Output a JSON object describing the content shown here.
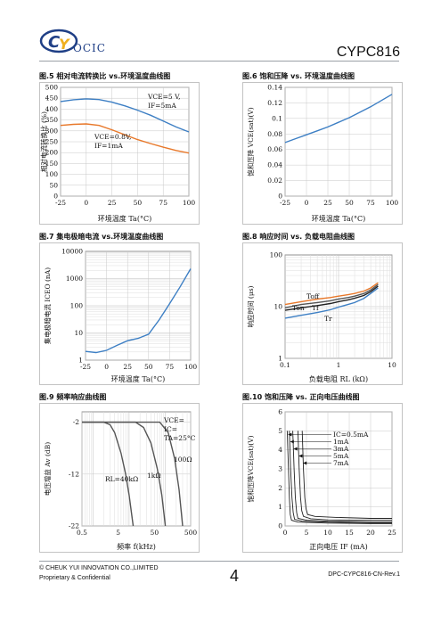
{
  "header": {
    "brand": "OCIC",
    "model": "CYPC816"
  },
  "footer": {
    "copyright": "© CHEUK YUI INNOVATION CO.,LIMITED",
    "confidential": "Proprietary & Confidential",
    "page": "4",
    "doc_id": "DPC-CYPC816-CN-Rev.1"
  },
  "colors": {
    "blue": "#3d7fc4",
    "orange": "#e8782a",
    "gray": "#555555",
    "dark": "#222222"
  },
  "chart_data": [
    {
      "id": "fig5",
      "type": "line",
      "title": "图.5 相对电流转换比 vs.环境温度曲线图",
      "xlabel": "环境温度 Ta(°C)",
      "ylabel": "相对电流转换比 (%)",
      "x_ticks": [
        "-25",
        "0",
        "25",
        "50",
        "75",
        "100"
      ],
      "y_ticks": [
        "0",
        "50",
        "100",
        "150",
        "200",
        "250",
        "300",
        "350",
        "400",
        "450",
        "500"
      ],
      "xlim": [
        -25,
        100
      ],
      "ylim": [
        0,
        500
      ],
      "grid": true,
      "series": [
        {
          "name": "VCE=5V, IF=5mA",
          "color": "blue",
          "x": [
            -25,
            -12.5,
            0,
            12.5,
            25,
            37.5,
            50,
            62.5,
            75,
            87.5,
            100
          ],
          "y": [
            435,
            443,
            447,
            444,
            432,
            415,
            395,
            372,
            345,
            318,
            295
          ]
        },
        {
          "name": "VCE=0.8V, IF=1mA",
          "color": "orange",
          "x": [
            -25,
            -12.5,
            0,
            12.5,
            25,
            37.5,
            50,
            62.5,
            75,
            87.5,
            100
          ],
          "y": [
            325,
            330,
            332,
            325,
            305,
            282,
            260,
            242,
            225,
            210,
            198
          ]
        }
      ],
      "annotations": [
        {
          "lines": [
            "VCE=5 V,",
            "IF=5mA"
          ]
        },
        {
          "lines": [
            "VCE=0.8V,",
            "IF=1mA"
          ]
        }
      ]
    },
    {
      "id": "fig6",
      "type": "line",
      "title": "图.6 饱和压降 vs. 环境温度曲线图",
      "xlabel": "环境温度 Ta(°C)",
      "ylabel": "饱和压降 VCE(sat)(V)",
      "x_ticks": [
        "-25",
        "0",
        "25",
        "50",
        "75",
        "100"
      ],
      "y_ticks": [
        "0",
        "0.02",
        "0.04",
        "0.06",
        "0.08",
        "0.1",
        "0.12",
        "0.14"
      ],
      "xlim": [
        -25,
        100
      ],
      "ylim": [
        0,
        0.14
      ],
      "grid": true,
      "series": [
        {
          "name": "VCE(sat)",
          "color": "blue",
          "x": [
            -25,
            -12.5,
            0,
            12.5,
            25,
            37.5,
            50,
            62.5,
            75,
            87.5,
            100
          ],
          "y": [
            0.069,
            0.074,
            0.079,
            0.084,
            0.089,
            0.095,
            0.101,
            0.108,
            0.115,
            0.123,
            0.131
          ]
        }
      ]
    },
    {
      "id": "fig7",
      "type": "line",
      "title": "图.7 集电极暗电流 vs.环境温度曲线图",
      "xlabel": "环境温度 Ta(°C)",
      "ylabel": "集电极暗电流 ICEO (nA)",
      "x_ticks": [
        "-25",
        "0",
        "25",
        "50",
        "75",
        "100"
      ],
      "y_ticks": [
        "1",
        "10",
        "100",
        "1000",
        "10000"
      ],
      "xlim": [
        -25,
        100
      ],
      "ylim": [
        1,
        10000
      ],
      "log_y": true,
      "grid": true,
      "series": [
        {
          "name": "ICEO",
          "color": "blue",
          "x": [
            -25,
            -12.5,
            0,
            12.5,
            25,
            37.5,
            50,
            62.5,
            75,
            87.5,
            100
          ],
          "y": [
            2.1,
            1.9,
            2.3,
            3.5,
            5.2,
            6.3,
            9.0,
            30,
            120,
            500,
            2300
          ]
        }
      ]
    },
    {
      "id": "fig8",
      "type": "line",
      "title": "图.8 响应时间 vs. 负载电阻曲线图",
      "xlabel": "负载电阻 RL (kΩ)",
      "ylabel": "响应时间 (μs)",
      "x_ticks": [
        "0.1",
        "1",
        "10"
      ],
      "y_ticks": [
        "1",
        "10",
        "100"
      ],
      "xlim": [
        0.1,
        10
      ],
      "ylim": [
        1,
        100
      ],
      "log_x": true,
      "log_y": true,
      "grid": true,
      "series": [
        {
          "name": "Toff",
          "color": "orange",
          "x": [
            0.1,
            0.2,
            0.4,
            0.7,
            1,
            1.5,
            2,
            3,
            4,
            5.5
          ],
          "y": [
            11,
            12.5,
            14,
            15,
            16,
            17,
            18,
            20,
            23,
            29
          ]
        },
        {
          "name": "Ton",
          "color": "gray",
          "x": [
            0.1,
            0.2,
            0.4,
            0.7,
            1,
            1.5,
            2,
            3,
            4,
            5.5
          ],
          "y": [
            9.5,
            11,
            12,
            13,
            14,
            15,
            16,
            18,
            21,
            27
          ]
        },
        {
          "name": "Tf",
          "color": "dark",
          "x": [
            0.1,
            0.2,
            0.4,
            0.7,
            1,
            1.5,
            2,
            3,
            4,
            5.5
          ],
          "y": [
            8.5,
            9.5,
            10.5,
            11.5,
            12.5,
            13.5,
            14.5,
            16.5,
            19.5,
            25
          ]
        },
        {
          "name": "Tr",
          "color": "blue",
          "x": [
            0.1,
            0.2,
            0.4,
            0.7,
            1,
            1.5,
            2,
            3,
            4,
            5.5
          ],
          "y": [
            6.0,
            6.8,
            7.7,
            8.7,
            9.8,
            11,
            12,
            14.5,
            18,
            23
          ]
        }
      ]
    },
    {
      "id": "fig9",
      "type": "line",
      "title": "图.9 频率响应曲线图",
      "xlabel": "频率 f(kHz)",
      "ylabel": "电压增益 Av (dB)",
      "x_ticks": [
        "0.5",
        "5",
        "50",
        "500"
      ],
      "y_ticks": [
        "-2",
        "-12",
        "-22"
      ],
      "xlim": [
        0.5,
        500
      ],
      "ylim": [
        -22,
        0
      ],
      "log_x": true,
      "grid": true,
      "series": [
        {
          "name": "RL=40kΩ",
          "color": "gray",
          "x": [
            0.5,
            2,
            3,
            4,
            6,
            8,
            10,
            13
          ],
          "y": [
            -2,
            -2,
            -2.5,
            -4,
            -8,
            -12,
            -16,
            -22
          ]
        },
        {
          "name": "RL=1kΩ",
          "color": "gray",
          "x": [
            0.5,
            15,
            25,
            40,
            60,
            80,
            100
          ],
          "y": [
            -2,
            -2,
            -3,
            -6,
            -11,
            -16,
            -22
          ]
        },
        {
          "name": "RL=100Ω",
          "color": "gray",
          "x": [
            0.5,
            70,
            120,
            180,
            240,
            300
          ],
          "y": [
            -2,
            -2,
            -4,
            -9,
            -15,
            -22
          ]
        }
      ],
      "annotations": [
        {
          "lines": [
            "VCE=",
            "IC=",
            "TA=25°C"
          ]
        },
        {
          "lines": [
            "RL=40kΩ"
          ]
        },
        {
          "lines": [
            "1kΩ"
          ]
        },
        {
          "lines": [
            "100Ω"
          ]
        }
      ]
    },
    {
      "id": "fig10",
      "type": "line",
      "title": "图.10 饱和压降 vs. 正向电压曲线图",
      "xlabel": "正向电压 IF (mA)",
      "ylabel": "饱和压降VCE(sat)(V)",
      "x_ticks": [
        "0",
        "5",
        "10",
        "15",
        "20",
        "25"
      ],
      "y_ticks": [
        "0",
        "1",
        "2",
        "3",
        "4",
        "5",
        "6"
      ],
      "xlim": [
        0,
        25
      ],
      "ylim": [
        0,
        6
      ],
      "grid": true,
      "series": [
        {
          "name": "IC=0.5mA",
          "color": "dark",
          "x": [
            0.5,
            0.8,
            1.0,
            1.2,
            1.5,
            3,
            10,
            20,
            25
          ],
          "y": [
            5.0,
            3.0,
            1.5,
            0.6,
            0.3,
            0.2,
            0.15,
            0.12,
            0.12
          ]
        },
        {
          "name": "1mA",
          "color": "dark",
          "x": [
            1.0,
            1.3,
            1.6,
            1.9,
            2.2,
            4,
            10,
            20,
            25
          ],
          "y": [
            5.0,
            3.0,
            1.5,
            0.7,
            0.35,
            0.25,
            0.2,
            0.17,
            0.17
          ]
        },
        {
          "name": "3mA",
          "color": "dark",
          "x": [
            1.8,
            2.1,
            2.4,
            2.7,
            3.0,
            5,
            10,
            20,
            25
          ],
          "y": [
            5.0,
            3.0,
            1.5,
            0.7,
            0.4,
            0.3,
            0.25,
            0.22,
            0.22
          ]
        },
        {
          "name": "5mA",
          "color": "dark",
          "x": [
            3.0,
            3.3,
            3.6,
            3.9,
            4.3,
            6,
            10,
            20,
            25
          ],
          "y": [
            5.0,
            3.0,
            1.5,
            0.8,
            0.5,
            0.38,
            0.32,
            0.3,
            0.3
          ]
        },
        {
          "name": "7mA",
          "color": "dark",
          "x": [
            4.0,
            4.3,
            4.6,
            4.9,
            5.3,
            7,
            12,
            20,
            25
          ],
          "y": [
            5.0,
            3.0,
            1.5,
            0.9,
            0.6,
            0.5,
            0.45,
            0.4,
            0.4
          ]
        }
      ],
      "labels": [
        "IC=0.5mA",
        "1mA",
        "3mA",
        "5mA",
        "7mA"
      ]
    }
  ]
}
